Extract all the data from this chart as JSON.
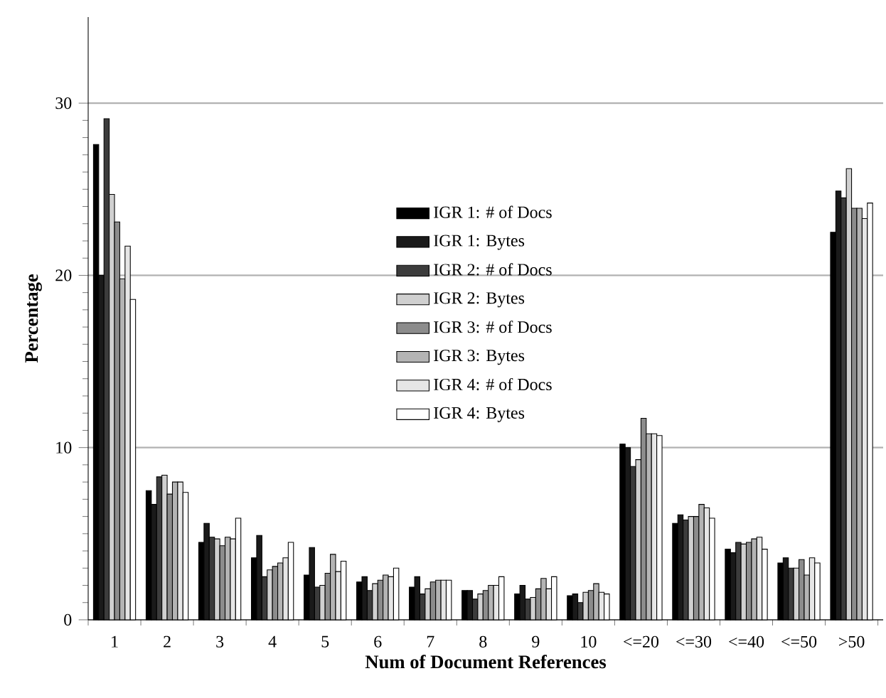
{
  "chart_data": {
    "type": "bar",
    "xlabel": "Num of Document References",
    "ylabel": "Percentage",
    "categories": [
      "1",
      "2",
      "3",
      "4",
      "5",
      "6",
      "7",
      "8",
      "9",
      "10",
      "<=20",
      "<=30",
      "<=40",
      "<=50",
      ">50"
    ],
    "series": [
      {
        "name": "IGR 1: # of Docs",
        "color": "#000000",
        "values": [
          27.6,
          7.5,
          4.5,
          3.6,
          2.6,
          2.2,
          1.9,
          1.7,
          1.5,
          1.4,
          10.2,
          5.6,
          4.1,
          3.3,
          22.5
        ]
      },
      {
        "name": "IGR 1: Bytes",
        "color": "#1a1a1a",
        "values": [
          20.0,
          6.7,
          5.6,
          4.9,
          4.2,
          2.5,
          2.5,
          1.7,
          2.0,
          1.5,
          10.0,
          6.1,
          3.9,
          3.6,
          24.9
        ]
      },
      {
        "name": "IGR 2: # of Docs",
        "color": "#3c3c3c",
        "values": [
          29.1,
          8.3,
          4.8,
          2.5,
          1.9,
          1.7,
          1.5,
          1.2,
          1.2,
          1.0,
          8.9,
          5.8,
          4.5,
          3.0,
          24.5
        ]
      },
      {
        "name": "IGR 2: Bytes",
        "color": "#d0d0d0",
        "values": [
          24.7,
          8.4,
          4.7,
          2.9,
          2.0,
          2.1,
          1.8,
          1.5,
          1.3,
          1.6,
          9.3,
          6.0,
          4.4,
          3.0,
          26.2
        ]
      },
      {
        "name": "IGR 3: # of Docs",
        "color": "#8c8c8c",
        "values": [
          23.1,
          7.3,
          4.3,
          3.1,
          2.7,
          2.3,
          2.2,
          1.7,
          1.8,
          1.7,
          11.7,
          6.0,
          4.5,
          3.5,
          23.9
        ]
      },
      {
        "name": "IGR 3: Bytes",
        "color": "#b4b4b4",
        "values": [
          19.8,
          8.0,
          4.8,
          3.3,
          3.8,
          2.6,
          2.3,
          2.0,
          2.4,
          2.1,
          10.8,
          6.7,
          4.7,
          2.6,
          23.9
        ]
      },
      {
        "name": "IGR 4: # of Docs",
        "color": "#e6e6e6",
        "values": [
          21.7,
          8.0,
          4.7,
          3.6,
          2.8,
          2.5,
          2.3,
          2.0,
          1.8,
          1.6,
          10.8,
          6.5,
          4.8,
          3.6,
          23.3
        ]
      },
      {
        "name": "IGR 4: Bytes",
        "color": "#ffffff",
        "values": [
          18.6,
          7.4,
          5.9,
          4.5,
          3.4,
          3.0,
          2.3,
          2.5,
          2.5,
          1.5,
          10.7,
          5.9,
          4.1,
          3.3,
          24.2
        ]
      }
    ],
    "ylim": [
      0,
      35
    ],
    "yticks": [
      0,
      10,
      20,
      30
    ],
    "grid": "y",
    "legend": "top"
  }
}
